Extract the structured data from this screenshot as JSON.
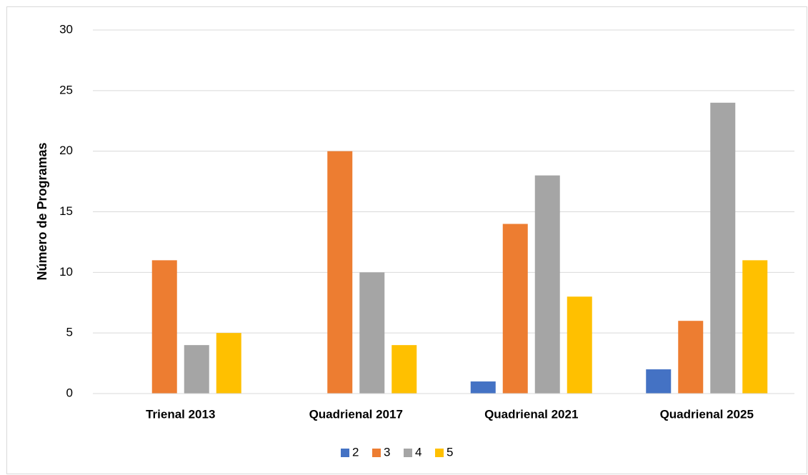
{
  "chart_data": {
    "type": "bar",
    "y_label": "Número de Programas",
    "categories": [
      "Trienal 2013",
      "Quadrienal 2017",
      "Quadrienal 2021",
      "Quadrienal 2025"
    ],
    "series": [
      {
        "name": "2",
        "color": "#4472c4",
        "values": [
          0,
          0,
          1,
          2
        ]
      },
      {
        "name": "3",
        "color": "#ed7d31",
        "values": [
          11,
          20,
          14,
          6
        ]
      },
      {
        "name": "4",
        "color": "#a5a5a5",
        "values": [
          4,
          10,
          18,
          24
        ]
      },
      {
        "name": "5",
        "color": "#ffc000",
        "values": [
          5,
          4,
          8,
          11
        ]
      }
    ],
    "ylim": [
      0,
      30
    ],
    "yticks": [
      0,
      5,
      10,
      15,
      20,
      25,
      30
    ],
    "grid": true,
    "legend": "bottom"
  }
}
